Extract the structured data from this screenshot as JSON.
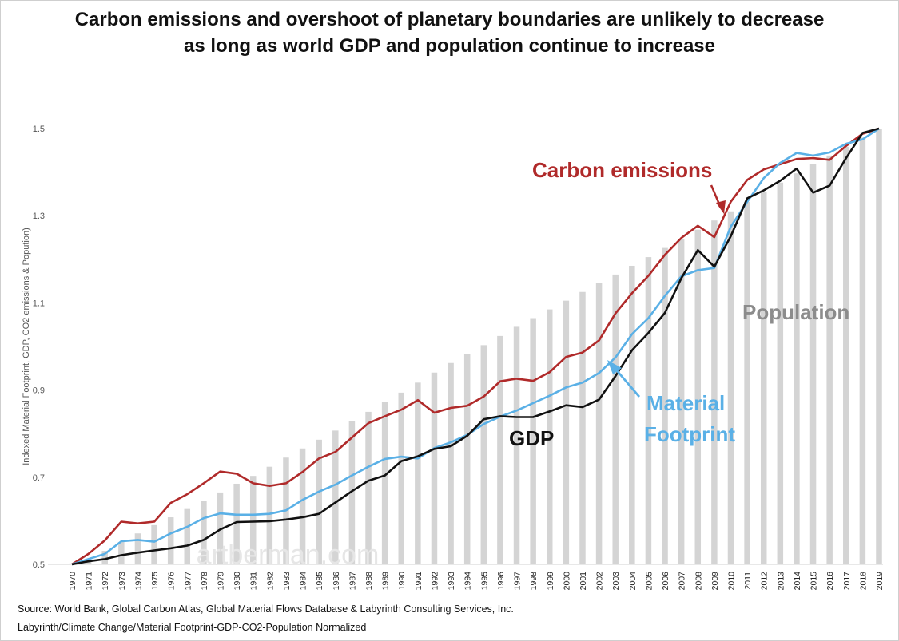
{
  "title_line1": "Carbon emissions and overshoot of planetary boundaries are unlikely to decrease",
  "title_line2": "as long as world GDP and population continue to increase",
  "source_line1": "Source:  World Bank, Global Carbon Atlas, Global Material Flows Database & Labyrinth Consulting Services, Inc.",
  "source_line2": "Labyrinth/Climate Change/Material Footprint-GDP-CO2-Population Normalized",
  "watermark": "artberman.com",
  "chart_data": {
    "type": "bar",
    "title": "Carbon emissions and overshoot of planetary boundaries are unlikely to decrease as long as world GDP and population continue to increase",
    "ylabel": "Indexed Material Footprint, GDP, CO2 emissions & Popution)",
    "xlabel": "",
    "ylim": [
      0.5,
      1.5
    ],
    "yticks": [
      "0.5",
      "0.7",
      "0.9",
      "1.1",
      "1.3",
      "1.5"
    ],
    "grid": false,
    "legend": "none",
    "categories": [
      "1970",
      "1971",
      "1972",
      "1973",
      "1974",
      "1975",
      "1976",
      "1977",
      "1978",
      "1979",
      "1980",
      "1981",
      "1982",
      "1983",
      "1984",
      "1985",
      "1986",
      "1987",
      "1988",
      "1989",
      "1990",
      "1991",
      "1992",
      "1993",
      "1994",
      "1995",
      "1996",
      "1997",
      "1998",
      "1999",
      "2000",
      "2001",
      "2002",
      "2003",
      "2004",
      "2005",
      "2006",
      "2007",
      "2008",
      "2009",
      "2010",
      "2011",
      "2012",
      "2013",
      "2014",
      "2015",
      "2016",
      "2017",
      "2018",
      "2019"
    ],
    "bars": {
      "name": "Population",
      "color": "#d4d4d4",
      "values": [
        0.502,
        0.513,
        0.531,
        0.551,
        0.571,
        0.59,
        0.608,
        0.627,
        0.646,
        0.665,
        0.685,
        0.703,
        0.724,
        0.745,
        0.766,
        0.786,
        0.807,
        0.828,
        0.85,
        0.872,
        0.894,
        0.917,
        0.94,
        0.962,
        0.982,
        1.003,
        1.024,
        1.045,
        1.065,
        1.085,
        1.105,
        1.125,
        1.145,
        1.165,
        1.185,
        1.205,
        1.226,
        1.247,
        1.268,
        1.289,
        1.31,
        1.332,
        1.354,
        1.376,
        1.397,
        1.418,
        1.438,
        1.458,
        1.479,
        1.5
      ]
    },
    "series": [
      {
        "name": "Carbon emissions",
        "color": "#b02a2a",
        "values": [
          0.5,
          0.524,
          0.555,
          0.598,
          0.594,
          0.598,
          0.641,
          0.661,
          0.686,
          0.713,
          0.708,
          0.686,
          0.68,
          0.686,
          0.712,
          0.743,
          0.758,
          0.791,
          0.824,
          0.84,
          0.855,
          0.877,
          0.848,
          0.859,
          0.864,
          0.885,
          0.92,
          0.926,
          0.921,
          0.941,
          0.976,
          0.986,
          1.014,
          1.076,
          1.122,
          1.162,
          1.21,
          1.249,
          1.277,
          1.251,
          1.332,
          1.382,
          1.406,
          1.418,
          1.43,
          1.432,
          1.428,
          1.46,
          1.488,
          1.5
        ]
      },
      {
        "name": "Material Footprint",
        "color": "#5ab0e6",
        "values": [
          0.5,
          0.512,
          0.524,
          0.553,
          0.556,
          0.552,
          0.571,
          0.586,
          0.606,
          0.617,
          0.614,
          0.614,
          0.616,
          0.624,
          0.648,
          0.667,
          0.683,
          0.704,
          0.724,
          0.742,
          0.747,
          0.743,
          0.767,
          0.78,
          0.797,
          0.822,
          0.839,
          0.853,
          0.87,
          0.887,
          0.906,
          0.917,
          0.939,
          0.975,
          1.028,
          1.065,
          1.116,
          1.161,
          1.175,
          1.18,
          1.275,
          1.332,
          1.386,
          1.421,
          1.444,
          1.438,
          1.445,
          1.465,
          1.475,
          1.5
        ]
      },
      {
        "name": "GDP",
        "color": "#111111",
        "values": [
          0.5,
          0.507,
          0.512,
          0.521,
          0.527,
          0.532,
          0.537,
          0.543,
          0.556,
          0.58,
          0.597,
          0.598,
          0.599,
          0.603,
          0.608,
          0.616,
          0.642,
          0.668,
          0.692,
          0.704,
          0.737,
          0.748,
          0.765,
          0.771,
          0.795,
          0.833,
          0.84,
          0.838,
          0.838,
          0.851,
          0.865,
          0.861,
          0.878,
          0.932,
          0.991,
          1.031,
          1.077,
          1.157,
          1.221,
          1.183,
          1.253,
          1.34,
          1.358,
          1.38,
          1.408,
          1.353,
          1.369,
          1.432,
          1.49,
          1.5
        ]
      }
    ],
    "annotations": [
      "Carbon emissions",
      "Material",
      "Footprint",
      "GDP",
      "Population"
    ]
  }
}
